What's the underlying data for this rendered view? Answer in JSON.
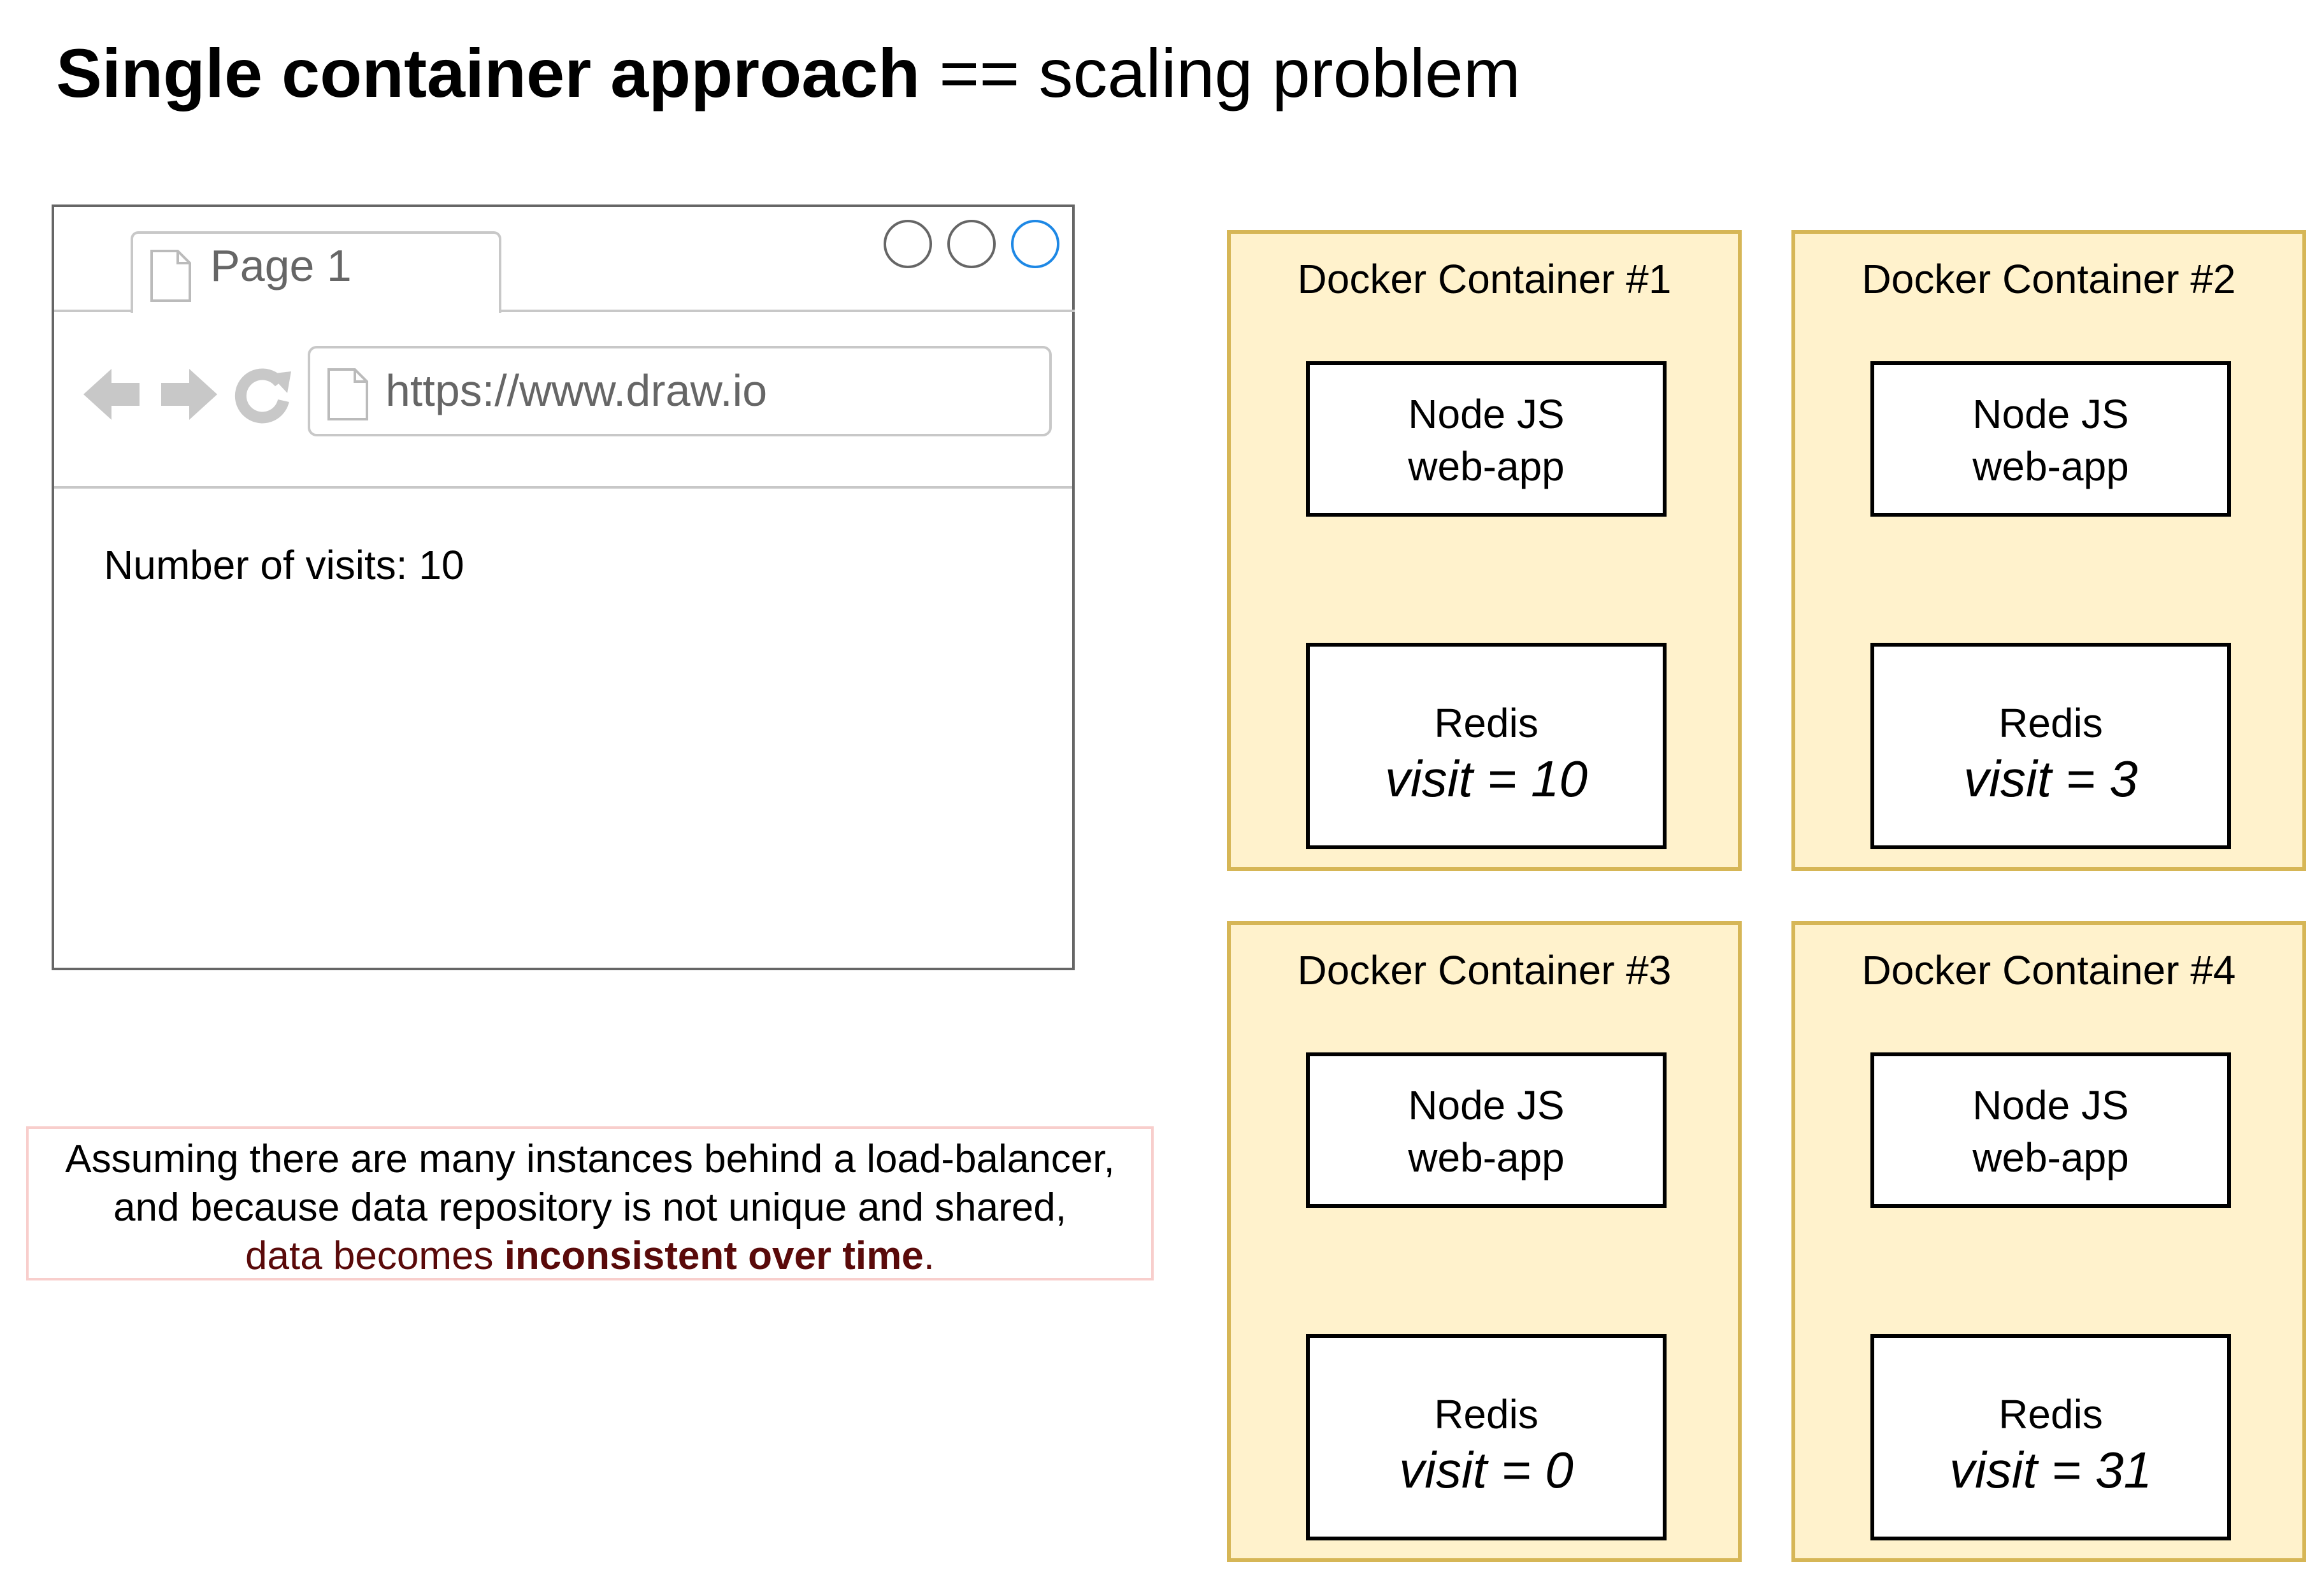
{
  "title": {
    "bold": "Single container approach",
    "rest": " == scaling problem"
  },
  "browser": {
    "tab_label": "Page 1",
    "url": "https://www.draw.io",
    "content": "Number of visits: 10"
  },
  "note": {
    "line1": "Assuming there are many instances behind a load-balancer,",
    "line2": "and because data repository is not unique and shared,",
    "line3_pre": "data becomes ",
    "line3_bold": "inconsistent over time",
    "line3_post": "."
  },
  "containers": [
    {
      "title": "Docker Container #1",
      "node_line1": "Node JS",
      "node_line2": "web-app",
      "redis_label": "Redis",
      "redis_value": "visit = 10"
    },
    {
      "title": "Docker Container #2",
      "node_line1": "Node JS",
      "node_line2": "web-app",
      "redis_label": "Redis",
      "redis_value": "visit = 3"
    },
    {
      "title": "Docker Container #3",
      "node_line1": "Node JS",
      "node_line2": "web-app",
      "redis_label": "Redis",
      "redis_value": "visit = 0"
    },
    {
      "title": "Docker Container #4",
      "node_line1": "Node JS",
      "node_line2": "web-app",
      "redis_label": "Redis",
      "redis_value": "visit = 31"
    }
  ],
  "colors": {
    "container_fill": "#fff2cc",
    "container_border": "#d6b656",
    "note_border": "#f8cecc",
    "note_emphasis": "#5a0a0a",
    "active_window_button": "#1e88e5"
  }
}
